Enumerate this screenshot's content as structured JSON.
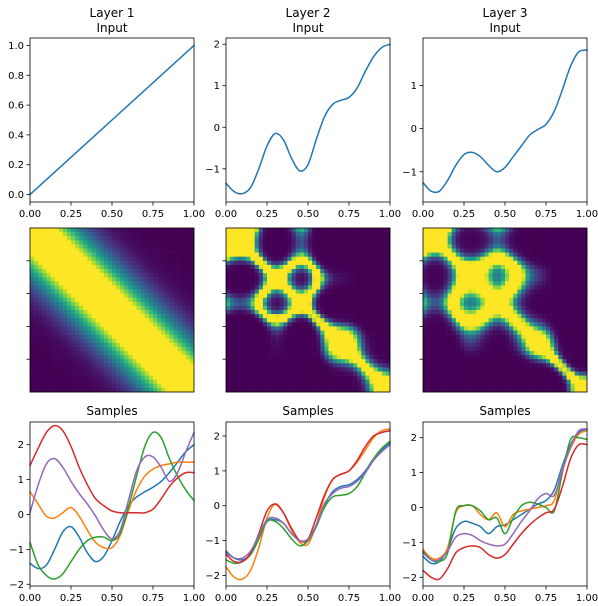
{
  "figure": {
    "columns": [
      {
        "title_line1": "Layer 1",
        "title_line2": "Input"
      },
      {
        "title_line1": "Layer 2",
        "title_line2": "Input"
      },
      {
        "title_line1": "Layer 3",
        "title_line2": "Input"
      }
    ],
    "samples_title": "Samples",
    "series_colors": [
      "#1f77b4",
      "#ff7f0e",
      "#2ca02c",
      "#d62728",
      "#9467bd"
    ],
    "heatmap_colormap": "viridis"
  },
  "chart_data": [
    {
      "type": "line",
      "panel": "layer1-input",
      "xlim": [
        0,
        1
      ],
      "ylim": [
        -0.05,
        1.05
      ],
      "xticks": [
        0.0,
        0.25,
        0.5,
        0.75,
        1.0
      ],
      "xticklabels": [
        "0.00",
        "0.25",
        "0.50",
        "0.75",
        "1.00"
      ],
      "yticks": [
        0.0,
        0.2,
        0.4,
        0.6,
        0.8,
        1.0
      ],
      "yticklabels": [
        "0.0",
        "0.2",
        "0.4",
        "0.6",
        "0.8",
        "1.0"
      ],
      "series": [
        {
          "x": [
            0,
            1
          ],
          "y": [
            0,
            1
          ]
        }
      ]
    },
    {
      "type": "line",
      "panel": "layer2-input",
      "xlim": [
        0,
        1
      ],
      "ylim": [
        -1.8,
        2.15
      ],
      "xticks": [
        0.0,
        0.25,
        0.5,
        0.75,
        1.0
      ],
      "xticklabels": [
        "0.00",
        "0.25",
        "0.50",
        "0.75",
        "1.00"
      ],
      "yticks": [
        -1,
        0,
        1,
        2
      ],
      "yticklabels": [
        "−1",
        "0",
        "1",
        "2"
      ],
      "series": [
        {
          "x": [
            0,
            0.05,
            0.1,
            0.15,
            0.2,
            0.25,
            0.3,
            0.35,
            0.4,
            0.45,
            0.5,
            0.55,
            0.6,
            0.65,
            0.7,
            0.75,
            0.8,
            0.85,
            0.9,
            0.95,
            1.0
          ],
          "y": [
            -1.35,
            -1.55,
            -1.6,
            -1.45,
            -1.0,
            -0.45,
            -0.15,
            -0.3,
            -0.75,
            -1.05,
            -0.9,
            -0.3,
            0.25,
            0.55,
            0.65,
            0.72,
            0.95,
            1.35,
            1.7,
            1.92,
            2.0
          ]
        }
      ]
    },
    {
      "type": "line",
      "panel": "layer3-input",
      "xlim": [
        0,
        1
      ],
      "ylim": [
        -1.7,
        2.1
      ],
      "xticks": [
        0.0,
        0.25,
        0.5,
        0.75,
        1.0
      ],
      "xticklabels": [
        "0.00",
        "0.25",
        "0.50",
        "0.75",
        "1.00"
      ],
      "yticks": [
        -1,
        0,
        1
      ],
      "yticklabels": [
        "−1",
        "0",
        "1"
      ],
      "series": [
        {
          "x": [
            0,
            0.05,
            0.1,
            0.15,
            0.2,
            0.25,
            0.3,
            0.35,
            0.4,
            0.45,
            0.5,
            0.55,
            0.6,
            0.65,
            0.7,
            0.75,
            0.8,
            0.85,
            0.9,
            0.95,
            1.0
          ],
          "y": [
            -1.25,
            -1.45,
            -1.45,
            -1.2,
            -0.85,
            -0.6,
            -0.55,
            -0.65,
            -0.85,
            -1.0,
            -0.9,
            -0.65,
            -0.4,
            -0.15,
            -0.02,
            0.1,
            0.4,
            0.9,
            1.45,
            1.78,
            1.82
          ]
        }
      ]
    },
    {
      "type": "heatmap",
      "panel": "layer1-kernel",
      "colormap": "viridis",
      "description_free": true,
      "centers": [
        0.0,
        0.17,
        0.33,
        0.5,
        0.67,
        0.83,
        1.0
      ],
      "bandwidth": 0.12
    },
    {
      "type": "heatmap",
      "panel": "layer2-kernel",
      "colormap": "viridis",
      "centers": [
        0.0,
        0.17,
        0.33,
        0.5,
        0.67,
        0.83,
        1.0
      ],
      "bandwidth": 0.07
    },
    {
      "type": "heatmap",
      "panel": "layer3-kernel",
      "colormap": "viridis",
      "centers": [
        0.0,
        0.17,
        0.33,
        0.5,
        0.67,
        0.83,
        1.0
      ],
      "bandwidth": 0.06
    },
    {
      "type": "line",
      "panel": "layer1-samples",
      "title": "Samples",
      "xlim": [
        0,
        1
      ],
      "ylim": [
        -2.05,
        2.65
      ],
      "xticks": [
        0.0,
        0.25,
        0.5,
        0.75,
        1.0
      ],
      "xticklabels": [
        "0.00",
        "0.25",
        "0.50",
        "0.75",
        "1.00"
      ],
      "yticks": [
        -2,
        -1,
        0,
        1,
        2
      ],
      "yticklabels": [
        "−2",
        "−1",
        "0",
        "1",
        "2"
      ],
      "x": [
        0,
        0.05,
        0.1,
        0.15,
        0.2,
        0.25,
        0.3,
        0.35,
        0.4,
        0.45,
        0.5,
        0.55,
        0.6,
        0.65,
        0.7,
        0.75,
        0.8,
        0.85,
        0.9,
        0.95,
        1.0
      ],
      "series": [
        {
          "color": "#1f77b4",
          "values": [
            -1.4,
            -1.55,
            -1.45,
            -1.0,
            -0.5,
            -0.35,
            -0.65,
            -1.1,
            -1.35,
            -1.2,
            -0.75,
            -0.2,
            0.25,
            0.5,
            0.65,
            0.78,
            0.95,
            1.2,
            1.5,
            1.8,
            2.0
          ]
        },
        {
          "color": "#ff7f0e",
          "values": [
            0.65,
            0.3,
            -0.05,
            -0.1,
            0.05,
            0.2,
            -0.05,
            -0.45,
            -0.8,
            -0.95,
            -0.95,
            -0.6,
            0.1,
            0.7,
            1.1,
            1.3,
            1.4,
            1.45,
            1.5,
            1.5,
            1.5
          ]
        },
        {
          "color": "#2ca02c",
          "values": [
            -0.8,
            -1.45,
            -1.75,
            -1.85,
            -1.7,
            -1.35,
            -1.0,
            -0.75,
            -0.65,
            -0.65,
            -0.75,
            -0.55,
            0.2,
            1.1,
            1.95,
            2.35,
            2.2,
            1.6,
            1.1,
            0.7,
            0.4
          ]
        },
        {
          "color": "#d62728",
          "values": [
            1.4,
            1.9,
            2.35,
            2.55,
            2.4,
            1.95,
            1.35,
            0.85,
            0.45,
            0.25,
            0.1,
            0.05,
            0.05,
            0.05,
            0.05,
            0.15,
            0.45,
            0.8,
            1.05,
            1.2,
            1.2
          ]
        },
        {
          "color": "#9467bd",
          "values": [
            0.05,
            0.85,
            1.45,
            1.6,
            1.35,
            0.95,
            0.6,
            0.3,
            -0.05,
            -0.45,
            -0.7,
            -0.45,
            0.4,
            1.25,
            1.65,
            1.65,
            1.35,
            0.95,
            1.2,
            1.8,
            2.35
          ]
        }
      ]
    },
    {
      "type": "line",
      "panel": "layer2-samples",
      "title": "Samples",
      "xlim": [
        0,
        1
      ],
      "ylim": [
        -2.3,
        2.4
      ],
      "xticks": [
        0.0,
        0.25,
        0.5,
        0.75,
        1.0
      ],
      "xticklabels": [
        "0.00",
        "0.25",
        "0.50",
        "0.75",
        "1.00"
      ],
      "yticks": [
        -2,
        -1,
        0,
        1,
        2
      ],
      "yticklabels": [
        "−2",
        "−1",
        "0",
        "1",
        "2"
      ],
      "x": [
        0,
        0.05,
        0.1,
        0.15,
        0.2,
        0.25,
        0.3,
        0.35,
        0.4,
        0.45,
        0.5,
        0.55,
        0.6,
        0.65,
        0.7,
        0.75,
        0.8,
        0.85,
        0.9,
        0.95,
        1.0
      ],
      "series": [
        {
          "color": "#1f77b4",
          "values": [
            -1.3,
            -1.5,
            -1.55,
            -1.4,
            -0.95,
            -0.45,
            -0.4,
            -0.5,
            -0.8,
            -1.0,
            -1.0,
            -0.6,
            0.0,
            0.4,
            0.55,
            0.6,
            0.75,
            1.0,
            1.35,
            1.6,
            1.8
          ]
        },
        {
          "color": "#ff7f0e",
          "values": [
            -1.75,
            -2.05,
            -2.1,
            -1.85,
            -1.2,
            -0.35,
            0.05,
            -0.2,
            -0.7,
            -1.05,
            -1.1,
            -0.55,
            0.25,
            0.75,
            0.9,
            1.0,
            1.25,
            1.6,
            1.95,
            2.15,
            2.2
          ]
        },
        {
          "color": "#2ca02c",
          "values": [
            -1.55,
            -1.65,
            -1.6,
            -1.4,
            -0.95,
            -0.45,
            -0.45,
            -0.65,
            -0.95,
            -1.15,
            -1.0,
            -0.6,
            -0.05,
            0.25,
            0.3,
            0.35,
            0.55,
            0.95,
            1.35,
            1.65,
            1.85
          ]
        },
        {
          "color": "#d62728",
          "values": [
            -1.4,
            -1.6,
            -1.6,
            -1.35,
            -0.8,
            -0.15,
            0.05,
            -0.2,
            -0.65,
            -1.0,
            -0.95,
            -0.35,
            0.3,
            0.75,
            0.9,
            1.0,
            1.3,
            1.7,
            2.0,
            2.1,
            2.15
          ]
        },
        {
          "color": "#9467bd",
          "values": [
            -1.35,
            -1.5,
            -1.5,
            -1.3,
            -0.85,
            -0.4,
            -0.35,
            -0.5,
            -0.8,
            -1.0,
            -0.95,
            -0.55,
            0.05,
            0.35,
            0.5,
            0.55,
            0.7,
            0.95,
            1.3,
            1.55,
            1.75
          ]
        }
      ]
    },
    {
      "type": "line",
      "panel": "layer3-samples",
      "title": "Samples",
      "xlim": [
        0,
        1
      ],
      "ylim": [
        -2.25,
        2.45
      ],
      "xticks": [
        0.0,
        0.25,
        0.5,
        0.75,
        1.0
      ],
      "xticklabels": [
        "0.00",
        "0.25",
        "0.50",
        "0.75",
        "1.00"
      ],
      "yticks": [
        -2,
        -1,
        0,
        1,
        2
      ],
      "yticklabels": [
        "−2",
        "−1",
        "0",
        "1",
        "2"
      ],
      "x": [
        0,
        0.05,
        0.1,
        0.15,
        0.2,
        0.25,
        0.3,
        0.35,
        0.4,
        0.45,
        0.5,
        0.55,
        0.6,
        0.65,
        0.7,
        0.75,
        0.8,
        0.85,
        0.9,
        0.95,
        1.0
      ],
      "series": [
        {
          "color": "#1f77b4",
          "values": [
            -1.4,
            -1.6,
            -1.55,
            -1.2,
            -0.6,
            -0.4,
            -0.45,
            -0.55,
            -0.75,
            -0.55,
            -0.5,
            -0.35,
            -0.2,
            -0.05,
            0.1,
            0.2,
            0.5,
            1.2,
            1.8,
            2.15,
            2.25
          ]
        },
        {
          "color": "#ff7f0e",
          "values": [
            -1.2,
            -1.45,
            -1.45,
            -1.15,
            -0.15,
            0.05,
            0.05,
            -0.2,
            -0.35,
            -0.15,
            -0.55,
            -0.2,
            -0.1,
            -0.05,
            0.0,
            0.05,
            0.2,
            1.1,
            1.7,
            2.1,
            2.2
          ]
        },
        {
          "color": "#2ca02c",
          "values": [
            -1.25,
            -1.5,
            -1.55,
            -1.3,
            -0.1,
            0.05,
            0.05,
            -0.1,
            -0.35,
            -0.3,
            -0.75,
            -0.3,
            0.05,
            0.15,
            0.1,
            0.0,
            -0.1,
            1.0,
            1.95,
            2.0,
            1.95
          ]
        },
        {
          "color": "#d62728",
          "values": [
            -1.8,
            -2.0,
            -2.05,
            -1.75,
            -1.3,
            -1.15,
            -1.1,
            -1.15,
            -1.35,
            -1.45,
            -1.35,
            -1.05,
            -0.75,
            -0.5,
            -0.3,
            -0.15,
            -0.05,
            0.6,
            1.4,
            1.8,
            1.8
          ]
        },
        {
          "color": "#9467bd",
          "values": [
            -1.3,
            -1.5,
            -1.5,
            -1.25,
            -0.85,
            -0.75,
            -0.8,
            -0.95,
            -1.05,
            -1.1,
            -1.05,
            -0.75,
            -0.4,
            -0.1,
            0.25,
            0.4,
            0.35,
            1.05,
            1.75,
            2.2,
            2.25
          ]
        }
      ]
    }
  ]
}
